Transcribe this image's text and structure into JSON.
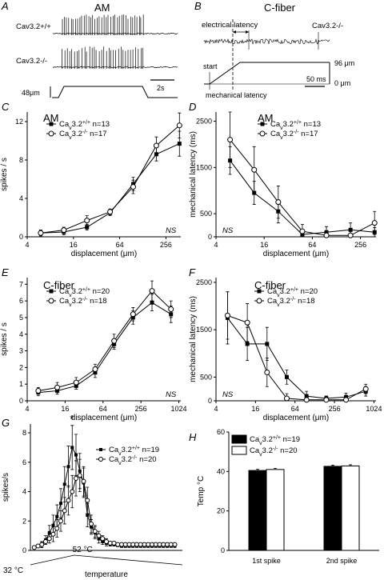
{
  "panel_letters": [
    "A",
    "B",
    "C",
    "D",
    "E",
    "F",
    "G",
    "H"
  ],
  "traces": {
    "a_title": "AM",
    "a_wt_label": "Cav3.2+/+",
    "a_ko_label": "Cav3.2-/-",
    "a_time_scale": "2s",
    "a_disp_scale": "48μm",
    "b_title": "C-fiber",
    "b_label": "Cav3.2-/-",
    "b_electrical": "electrical latency",
    "b_start": "start",
    "b_mechanical": "mechanical latency",
    "b_top_value": "96 μm",
    "b_bottom_value": "0 μm",
    "b_time_scale": "50 ms"
  },
  "chart_data": [
    {
      "id": "C",
      "type": "line",
      "title": "AM",
      "xlabel": "displacement (μm)",
      "ylabel": "spikes / s",
      "x_scale": "log2",
      "x_ticks": [
        4,
        16,
        64,
        256
      ],
      "xlim": [
        4,
        400
      ],
      "y_ticks": [
        0,
        4,
        8,
        12
      ],
      "ylim": [
        0,
        13
      ],
      "annotation": "NS",
      "x": [
        6,
        12,
        24,
        48,
        96,
        192,
        384
      ],
      "series": [
        {
          "name": "Cav3.2+/+ n=13",
          "marker": "filled-square",
          "values": [
            0.4,
            0.5,
            1.0,
            2.5,
            5.5,
            8.6,
            9.7
          ],
          "errors": [
            0.3,
            0.3,
            0.3,
            0.3,
            0.7,
            0.7,
            1.3
          ]
        },
        {
          "name": "Cav3.2-/- n=17",
          "marker": "open-circle",
          "values": [
            0.4,
            0.7,
            1.7,
            2.6,
            5.2,
            9.5,
            11.6
          ],
          "errors": [
            0.3,
            0.3,
            0.5,
            0.3,
            0.7,
            0.9,
            1.3
          ]
        }
      ]
    },
    {
      "id": "D",
      "type": "line",
      "title": "AM",
      "xlabel": "displacement (μm)",
      "ylabel": "mechanical latency (ms)",
      "x_scale": "log2",
      "x_ticks": [
        4,
        16,
        64,
        256
      ],
      "xlim": [
        4,
        400
      ],
      "y_ticks": [
        0,
        500,
        1500,
        2500
      ],
      "ylim": [
        0,
        2700
      ],
      "annotation": "NS",
      "x": [
        6,
        12,
        24,
        48,
        96,
        192,
        384
      ],
      "series": [
        {
          "name": "Cav3.2+/+ n=13",
          "marker": "filled-square",
          "values": [
            1650,
            950,
            550,
            50,
            100,
            150,
            100
          ],
          "errors": [
            300,
            250,
            250,
            100,
            120,
            150,
            100
          ]
        },
        {
          "name": "Cav3.2-/- n=17",
          "marker": "open-circle",
          "values": [
            2100,
            1450,
            750,
            120,
            30,
            30,
            300
          ],
          "errors": [
            600,
            500,
            350,
            150,
            100,
            100,
            250
          ]
        }
      ]
    },
    {
      "id": "E",
      "type": "line",
      "title": "C-fiber",
      "xlabel": "displacement (μm)",
      "ylabel": "spikes / s",
      "x_scale": "log2",
      "x_ticks": [
        4,
        16,
        64,
        256,
        1024
      ],
      "xlim": [
        4,
        1100
      ],
      "y_ticks": [
        0,
        1,
        2,
        3,
        4,
        5,
        6,
        7
      ],
      "ylim": [
        0,
        7.4
      ],
      "annotation": "NS",
      "x": [
        6,
        12,
        24,
        48,
        96,
        192,
        384,
        768
      ],
      "series": [
        {
          "name": "Cav3.2+/+ n=20",
          "marker": "filled-square",
          "values": [
            0.5,
            0.6,
            0.9,
            1.7,
            3.4,
            5.0,
            5.9,
            5.2
          ],
          "errors": [
            0.2,
            0.2,
            0.2,
            0.3,
            0.3,
            0.4,
            0.5,
            0.5
          ]
        },
        {
          "name": "Cav3.2-/- n=18",
          "marker": "open-circle",
          "values": [
            0.6,
            0.8,
            1.1,
            1.9,
            3.6,
            5.2,
            6.6,
            5.5
          ],
          "errors": [
            0.2,
            0.3,
            0.3,
            0.3,
            0.4,
            0.4,
            0.6,
            0.5
          ]
        }
      ]
    },
    {
      "id": "F",
      "type": "line",
      "title": "C-fiber",
      "xlabel": "displacement (μm)",
      "ylabel": "mechanical latency (ms)",
      "x_scale": "log2",
      "x_ticks": [
        4,
        16,
        64,
        256,
        1024
      ],
      "xlim": [
        4,
        1100
      ],
      "y_ticks": [
        0,
        500,
        1500,
        2500
      ],
      "ylim": [
        0,
        2600
      ],
      "annotation": "NS",
      "x": [
        6,
        12,
        24,
        48,
        96,
        192,
        384,
        768
      ],
      "series": [
        {
          "name": "Cav3.2+/+ n=20",
          "marker": "filled-square",
          "values": [
            1750,
            1200,
            1200,
            500,
            100,
            50,
            80,
            200
          ],
          "errors": [
            550,
            350,
            350,
            150,
            100,
            50,
            80,
            100
          ]
        },
        {
          "name": "Cav3.2-/- n=18",
          "marker": "open-circle",
          "values": [
            1800,
            1650,
            600,
            50,
            20,
            20,
            20,
            250
          ],
          "errors": [
            500,
            400,
            300,
            100,
            50,
            50,
            50,
            100
          ]
        }
      ]
    },
    {
      "id": "G",
      "type": "line",
      "title": "",
      "xlabel": "temperature",
      "ylabel": "spikes/s",
      "x_ticks": [],
      "xlim": [
        0,
        40
      ],
      "y_ticks": [
        0,
        2,
        4,
        6,
        8
      ],
      "ylim": [
        0,
        8.6
      ],
      "x_start_label": "32 °C",
      "x_peak_label": "52 °C",
      "annotation": "*",
      "series": [
        {
          "name": "Cav3.2+/+ n=19",
          "marker": "filled-square",
          "x": [
            1,
            2,
            3,
            4,
            5,
            6,
            7,
            8,
            9,
            10,
            11,
            12,
            13,
            14,
            15,
            16,
            17,
            18,
            19,
            20,
            21,
            22,
            23,
            24,
            25,
            26,
            27,
            28,
            29,
            30,
            31,
            32,
            33,
            34,
            35,
            36,
            37,
            38
          ],
          "values": [
            0.2,
            0.3,
            0.4,
            0.7,
            1.2,
            1.7,
            2.3,
            3.2,
            4.5,
            5.7,
            7.0,
            6.5,
            5.4,
            4.6,
            2.4,
            1.6,
            1.2,
            0.8,
            0.6,
            0.5,
            0.4,
            0.4,
            0.35,
            0.3,
            0.3,
            0.3,
            0.3,
            0.3,
            0.3,
            0.3,
            0.3,
            0.3,
            0.3,
            0.3,
            0.3,
            0.3,
            0.3,
            0.3
          ],
          "errors": [
            0.1,
            0.1,
            0.2,
            0.3,
            0.5,
            0.7,
            0.8,
            1.0,
            1.2,
            1.4,
            1.5,
            1.4,
            1.2,
            1.0,
            0.8,
            0.5,
            0.4,
            0.3,
            0.2,
            0.2,
            0.1,
            0.1,
            0.1,
            0.1,
            0.1,
            0.1,
            0.1,
            0.1,
            0.1,
            0.1,
            0.1,
            0.1,
            0.1,
            0.1,
            0.1,
            0.1,
            0.1,
            0.1
          ]
        },
        {
          "name": "Cav3.2-/- n=20",
          "marker": "open-circle",
          "x": [
            1,
            2,
            3,
            4,
            5,
            6,
            7,
            8,
            9,
            10,
            11,
            12,
            13,
            14,
            15,
            16,
            17,
            18,
            19,
            20,
            21,
            22,
            23,
            24,
            25,
            26,
            27,
            28,
            29,
            30,
            31,
            32,
            33,
            34,
            35,
            36,
            37,
            38
          ],
          "values": [
            0.2,
            0.3,
            0.4,
            0.6,
            0.8,
            1.1,
            1.5,
            2.0,
            2.7,
            3.4,
            4.0,
            4.9,
            5.1,
            4.7,
            3.4,
            1.8,
            1.3,
            1.0,
            0.8,
            0.6,
            0.5,
            0.5,
            0.4,
            0.4,
            0.4,
            0.4,
            0.4,
            0.4,
            0.4,
            0.4,
            0.4,
            0.4,
            0.4,
            0.4,
            0.4,
            0.4,
            0.4,
            0.4
          ],
          "errors": [
            0.1,
            0.1,
            0.2,
            0.2,
            0.3,
            0.5,
            0.6,
            0.7,
            0.9,
            1.0,
            1.1,
            1.2,
            1.1,
            1.0,
            0.9,
            0.6,
            0.4,
            0.3,
            0.2,
            0.2,
            0.1,
            0.1,
            0.1,
            0.1,
            0.1,
            0.1,
            0.1,
            0.1,
            0.1,
            0.1,
            0.1,
            0.1,
            0.1,
            0.1,
            0.1,
            0.1,
            0.1,
            0.1
          ]
        }
      ]
    },
    {
      "id": "H",
      "type": "bar",
      "ylabel": "Temp °C",
      "y_ticks": [
        0,
        20,
        40,
        60
      ],
      "ylim": [
        0,
        60
      ],
      "categories": [
        "1st spike",
        "2nd spike"
      ],
      "series": [
        {
          "name": "Cav3.2+/+ n=19",
          "fill": "#000000",
          "values": [
            40.5,
            42.6
          ],
          "errors": [
            0.6,
            0.6
          ]
        },
        {
          "name": "Cav3.2-/- n=20",
          "fill": "#ffffff",
          "values": [
            41.0,
            42.8
          ],
          "errors": [
            0.6,
            0.6
          ]
        }
      ]
    }
  ]
}
